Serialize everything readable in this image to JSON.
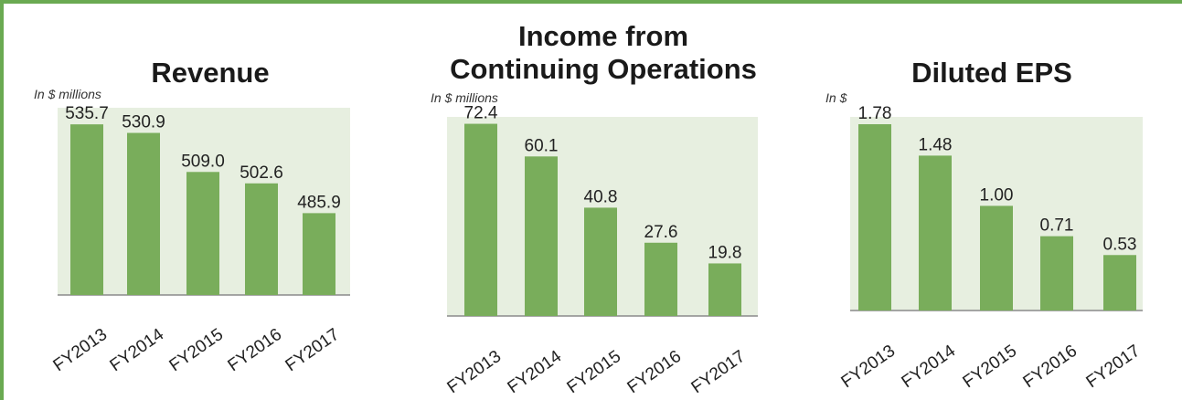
{
  "colors": {
    "bar": "#79ad5b",
    "plot_bg": "#e7efe0",
    "axis": "#8a8a8a",
    "frame": "#6aaa52"
  },
  "chart_data": [
    {
      "type": "bar",
      "title": "Revenue",
      "title_lines": [
        "Revenue"
      ],
      "subtitle": "In $ millions",
      "categories": [
        "FY2013",
        "FY2014",
        "FY2015",
        "FY2016",
        "FY2017"
      ],
      "values": [
        535.7,
        530.9,
        509.0,
        502.6,
        485.9
      ],
      "value_labels": [
        "535.7",
        "530.9",
        "509.0",
        "502.6",
        "485.9"
      ],
      "ylim": [
        440,
        545
      ],
      "grid": false,
      "legend": "none"
    },
    {
      "type": "bar",
      "title": "Income from Continuing Operations",
      "title_lines": [
        "Income from",
        "Continuing Operations"
      ],
      "subtitle": "In $ millions",
      "categories": [
        "FY2013",
        "FY2014",
        "FY2015",
        "FY2016",
        "FY2017"
      ],
      "values": [
        72.4,
        60.1,
        40.8,
        27.6,
        19.8
      ],
      "value_labels": [
        "72.4",
        "60.1",
        "40.8",
        "27.6",
        "19.8"
      ],
      "ylim": [
        0,
        75
      ],
      "grid": false,
      "legend": "none"
    },
    {
      "type": "bar",
      "title": "Diluted EPS",
      "title_lines": [
        "Diluted EPS"
      ],
      "subtitle": "In $",
      "categories": [
        "FY2013",
        "FY2014",
        "FY2015",
        "FY2016",
        "FY2017"
      ],
      "values": [
        1.78,
        1.48,
        1.0,
        0.71,
        0.53
      ],
      "value_labels": [
        "1.78",
        "1.48",
        "1.00",
        "0.71",
        "0.53"
      ],
      "ylim": [
        0,
        1.85
      ],
      "grid": false,
      "legend": "none"
    }
  ]
}
